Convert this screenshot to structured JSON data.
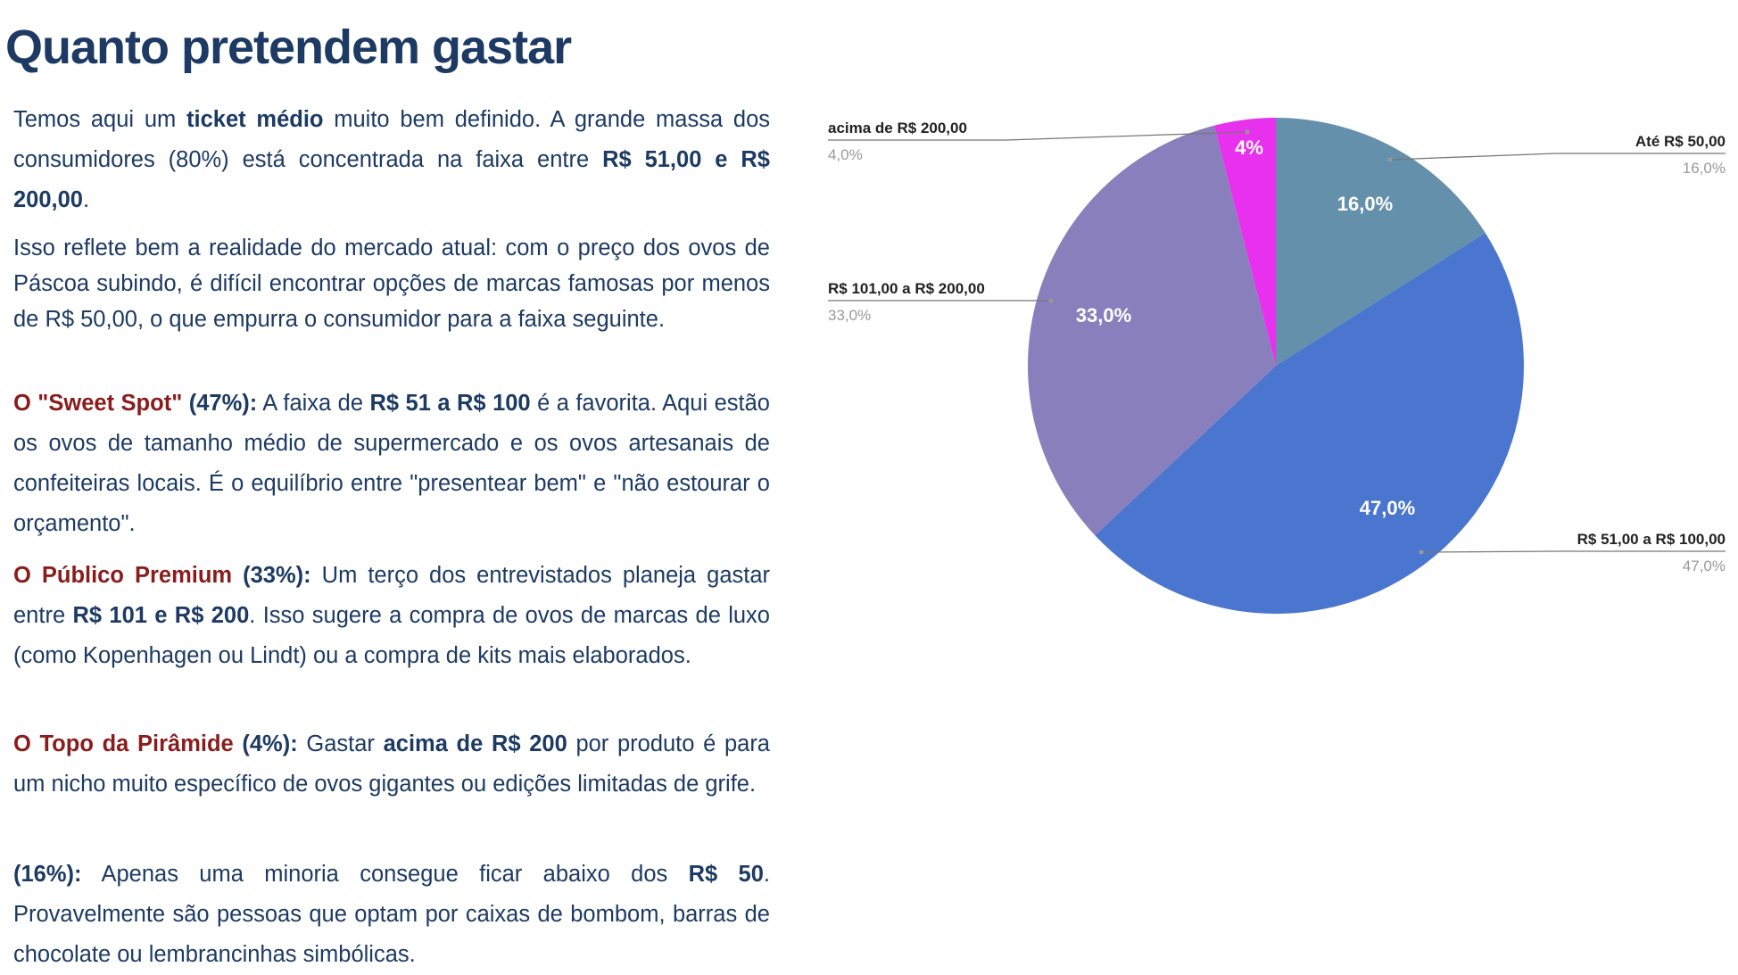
{
  "title": "Quanto pretendem gastar",
  "paragraphs": [
    [
      {
        "t": "Temos aqui um ",
        "s": ""
      },
      {
        "t": "ticket médio",
        "s": "b"
      },
      {
        "t": " muito bem definido. A grande massa dos consumidores (80%) está concentrada na faixa entre ",
        "s": ""
      },
      {
        "t": "R$ 51,00 e R$ 200,00",
        "s": "b"
      },
      {
        "t": ".",
        "s": ""
      }
    ],
    [
      {
        "t": "Isso reflete bem a realidade do mercado atual: com o preço dos ovos de Páscoa subindo, é difícil encontrar opções de marcas famosas por menos de R$ 50,00, o que empurra o consumidor para a faixa seguinte.",
        "s": ""
      }
    ],
    [
      {
        "t": "O \"Sweet Spot\"",
        "s": "r"
      },
      {
        "t": " (47%):",
        "s": "b"
      },
      {
        "t": " A faixa de ",
        "s": ""
      },
      {
        "t": "R$ 51 a R$ 100",
        "s": "b"
      },
      {
        "t": " é a favorita. Aqui estão os ovos de tamanho médio de supermercado e os ovos artesanais de confeiteiras locais. É o equilíbrio entre \"presentear bem\" e \"não estourar o orçamento\".",
        "s": ""
      }
    ],
    [
      {
        "t": "O Público Premium",
        "s": "r"
      },
      {
        "t": " (33%):",
        "s": "b"
      },
      {
        "t": " Um terço dos entrevistados planeja gastar entre ",
        "s": ""
      },
      {
        "t": "R$ 101 e R$ 200",
        "s": "b"
      },
      {
        "t": ". Isso sugere a compra de ovos de marcas de luxo (como Kopenhagen ou Lindt) ou a compra de kits mais elaborados.",
        "s": ""
      }
    ],
    [
      {
        "t": "O Topo da Pirâmide",
        "s": "r"
      },
      {
        "t": " (4%):",
        "s": "b"
      },
      {
        "t": " Gastar ",
        "s": ""
      },
      {
        "t": "acima de R$ 200",
        "s": "b"
      },
      {
        "t": " por produto é para um nicho muito específico de ovos gigantes ou edições limitadas de grife.",
        "s": ""
      }
    ],
    [
      {
        "t": "(16%):",
        "s": "b"
      },
      {
        "t": " Apenas uma minoria consegue ficar abaixo dos ",
        "s": ""
      },
      {
        "t": "R$ 50",
        "s": "b"
      },
      {
        "t": ". Provavelmente são pessoas que optam por caixas de bombom, barras de chocolate ou lembrancinhas simbólicas.",
        "s": ""
      }
    ]
  ],
  "chart_data": {
    "type": "pie",
    "start": "top, clockwise",
    "slices": [
      {
        "label": "Até R$ 50,00",
        "value": 16.0,
        "pct_label": "16,0%",
        "inner_label": "16,0%",
        "color": "#6490ab"
      },
      {
        "label": "R$ 51,00 a R$ 100,00",
        "value": 47.0,
        "pct_label": "47,0%",
        "inner_label": "47,0%",
        "color": "#4a76cf"
      },
      {
        "label": "R$ 101,00 a R$ 200,00",
        "value": 33.0,
        "pct_label": "33,0%",
        "inner_label": "33,0%",
        "color": "#8a7fbd"
      },
      {
        "label": "acima de R$ 200,00",
        "value": 4.0,
        "pct_label": "4,0%",
        "inner_label": "4%",
        "color": "#e830ef"
      }
    ]
  }
}
